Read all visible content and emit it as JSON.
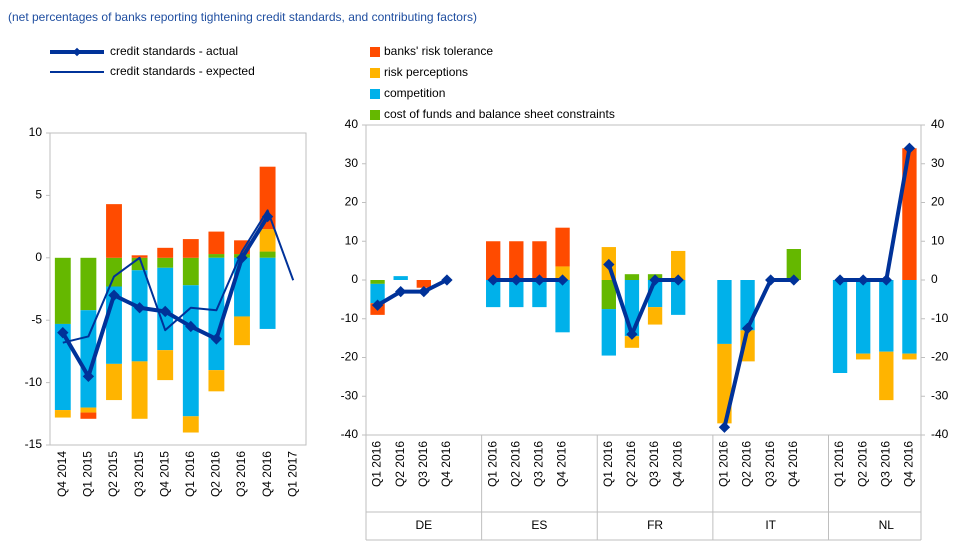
{
  "chart_data": [
    {
      "type": "bar",
      "stacked": true,
      "subtitle": "(net percentages of banks reporting tightening credit standards, and contributing factors)",
      "categories": [
        "Q4 2014",
        "Q1 2015",
        "Q2 2015",
        "Q3 2015",
        "Q4 2015",
        "Q1 2016",
        "Q2 2016",
        "Q3 2016",
        "Q4 2016",
        "Q1 2017"
      ],
      "series": [
        {
          "name": "banks' risk tolerance",
          "color": "#ff4b00",
          "values": [
            0,
            -0.5,
            4.3,
            0.2,
            0.8,
            1.5,
            1.8,
            1.1,
            5.0,
            null
          ]
        },
        {
          "name": "risk perceptions",
          "color": "#ffb400",
          "values": [
            -0.6,
            -0.4,
            -2.9,
            -4.6,
            -2.4,
            -1.3,
            -1.7,
            -2.3,
            1.8,
            null
          ]
        },
        {
          "name": "competition",
          "color": "#00b1ea",
          "values": [
            -6.9,
            -7.8,
            -6.2,
            -7.3,
            -6.6,
            -10.5,
            -9.0,
            -4.7,
            -5.7,
            null
          ]
        },
        {
          "name": "cost of funds and balance sheet constraints",
          "color": "#65b800",
          "values": [
            -5.3,
            -4.2,
            -2.3,
            -1.0,
            -0.8,
            -2.2,
            0.3,
            0.3,
            0.5,
            null
          ]
        }
      ],
      "lines": [
        {
          "name": "credit standards - actual",
          "color": "#003299",
          "marker": "diamond",
          "values": [
            -6,
            -9.5,
            -3,
            -4,
            -4.3,
            -5.5,
            -6.5,
            0,
            3.3,
            null
          ]
        },
        {
          "name": "credit standards - expected",
          "color": "#003299",
          "values": [
            -6.8,
            -6.3,
            -1.5,
            0,
            -5.8,
            -4,
            -4.2,
            0.5,
            3.8,
            -1.8
          ]
        }
      ],
      "ylim": [
        -15,
        10
      ],
      "yticks": [
        -15,
        -10,
        -5,
        0,
        5,
        10
      ],
      "grid": false
    },
    {
      "type": "bar",
      "stacked": true,
      "groups": [
        {
          "label": "DE",
          "categories": [
            "Q1 2016",
            "Q2 2016",
            "Q3 2016",
            "Q4 2016"
          ]
        },
        {
          "label": "ES",
          "categories": [
            "Q1 2016",
            "Q2 2016",
            "Q3 2016",
            "Q4 2016"
          ]
        },
        {
          "label": "FR",
          "categories": [
            "Q1 2016",
            "Q2 2016",
            "Q3 2016",
            "Q4 2016"
          ]
        },
        {
          "label": "IT",
          "categories": [
            "Q1 2016",
            "Q2 2016",
            "Q3 2016",
            "Q4 2016"
          ]
        },
        {
          "label": "NL",
          "categories": [
            "Q1 2016",
            "Q2 2016",
            "Q3 2016",
            "Q4 2016"
          ]
        }
      ],
      "series": [
        {
          "color": "#ff4b00",
          "values": [
            -3,
            0,
            -2,
            0,
            10,
            10,
            10,
            10,
            0,
            0,
            0,
            0,
            0,
            0,
            0,
            0,
            0,
            0,
            0,
            34
          ]
        },
        {
          "color": "#ffb400",
          "values": [
            0,
            0,
            0,
            0,
            0,
            0,
            0,
            3.5,
            8.5,
            -3,
            -4.5,
            7.5,
            -20.5,
            -8,
            0,
            0,
            0,
            -1.5,
            -12.5,
            -1.5
          ]
        },
        {
          "color": "#00b1ea",
          "values": [
            -5,
            1,
            0,
            0,
            -7,
            -7,
            -7,
            -13.5,
            -12,
            -14.5,
            -7,
            -9,
            -16.5,
            -13,
            0,
            0,
            -24,
            -19,
            -18.5,
            -19
          ]
        },
        {
          "color": "#65b800",
          "values": [
            -1,
            0,
            0,
            0,
            0,
            0,
            0,
            0,
            -7.5,
            1.5,
            1.5,
            0,
            0,
            0,
            0,
            8,
            0,
            0,
            0,
            0
          ]
        }
      ],
      "lines": [
        {
          "color": "#003299",
          "marker": "diamond",
          "values": [
            -6.5,
            -3,
            -3,
            0,
            0,
            0,
            0,
            0,
            4,
            -14,
            0,
            0,
            -38,
            -12.5,
            0,
            0,
            0,
            0,
            0,
            34
          ]
        }
      ],
      "ylim": [
        -40,
        40
      ],
      "yticks": [
        -40,
        -30,
        -20,
        -10,
        0,
        10,
        20,
        30,
        40
      ],
      "y2lim": [
        -40,
        40
      ],
      "y2ticks": [
        -40,
        -30,
        -20,
        -10,
        0,
        10,
        20,
        30,
        40
      ],
      "grid": false
    }
  ]
}
